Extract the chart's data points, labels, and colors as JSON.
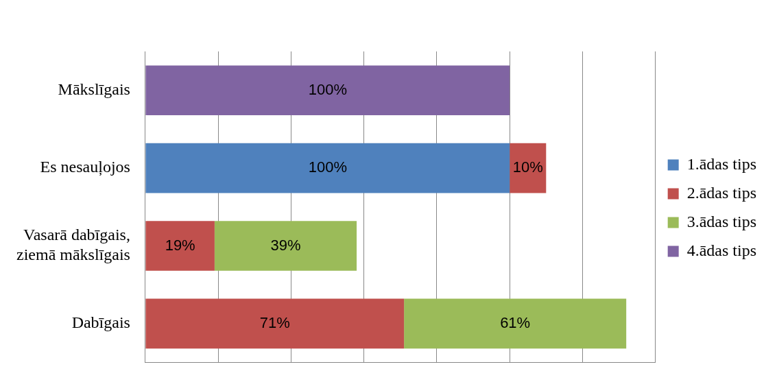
{
  "chart_data": {
    "type": "bar",
    "orientation": "horizontal",
    "stacked": true,
    "categories": [
      "Mākslīgais",
      "Es nesauļojos",
      "Vasarā dabīgais, ziemā mākslīgais",
      "Dabīgais"
    ],
    "series": [
      {
        "name": "1.ādas tips",
        "color": "#4f81bd",
        "values": [
          null,
          100,
          null,
          null
        ],
        "value_labels": [
          null,
          "100%",
          null,
          null
        ]
      },
      {
        "name": "2.ādas tips",
        "color": "#c0504d",
        "values": [
          null,
          10,
          19,
          71
        ],
        "value_labels": [
          null,
          "10%",
          "19%",
          "71%"
        ]
      },
      {
        "name": "3.ādas tips",
        "color": "#9bbb59",
        "values": [
          null,
          null,
          39,
          61
        ],
        "value_labels": [
          null,
          null,
          "39%",
          "61%"
        ]
      },
      {
        "name": "4.ādas tips",
        "color": "#8064a2",
        "values": [
          100,
          null,
          null,
          null
        ],
        "value_labels": [
          "100%",
          null,
          null,
          null
        ]
      }
    ],
    "tick_labels": "y",
    "grid": "x",
    "legend": "right"
  }
}
